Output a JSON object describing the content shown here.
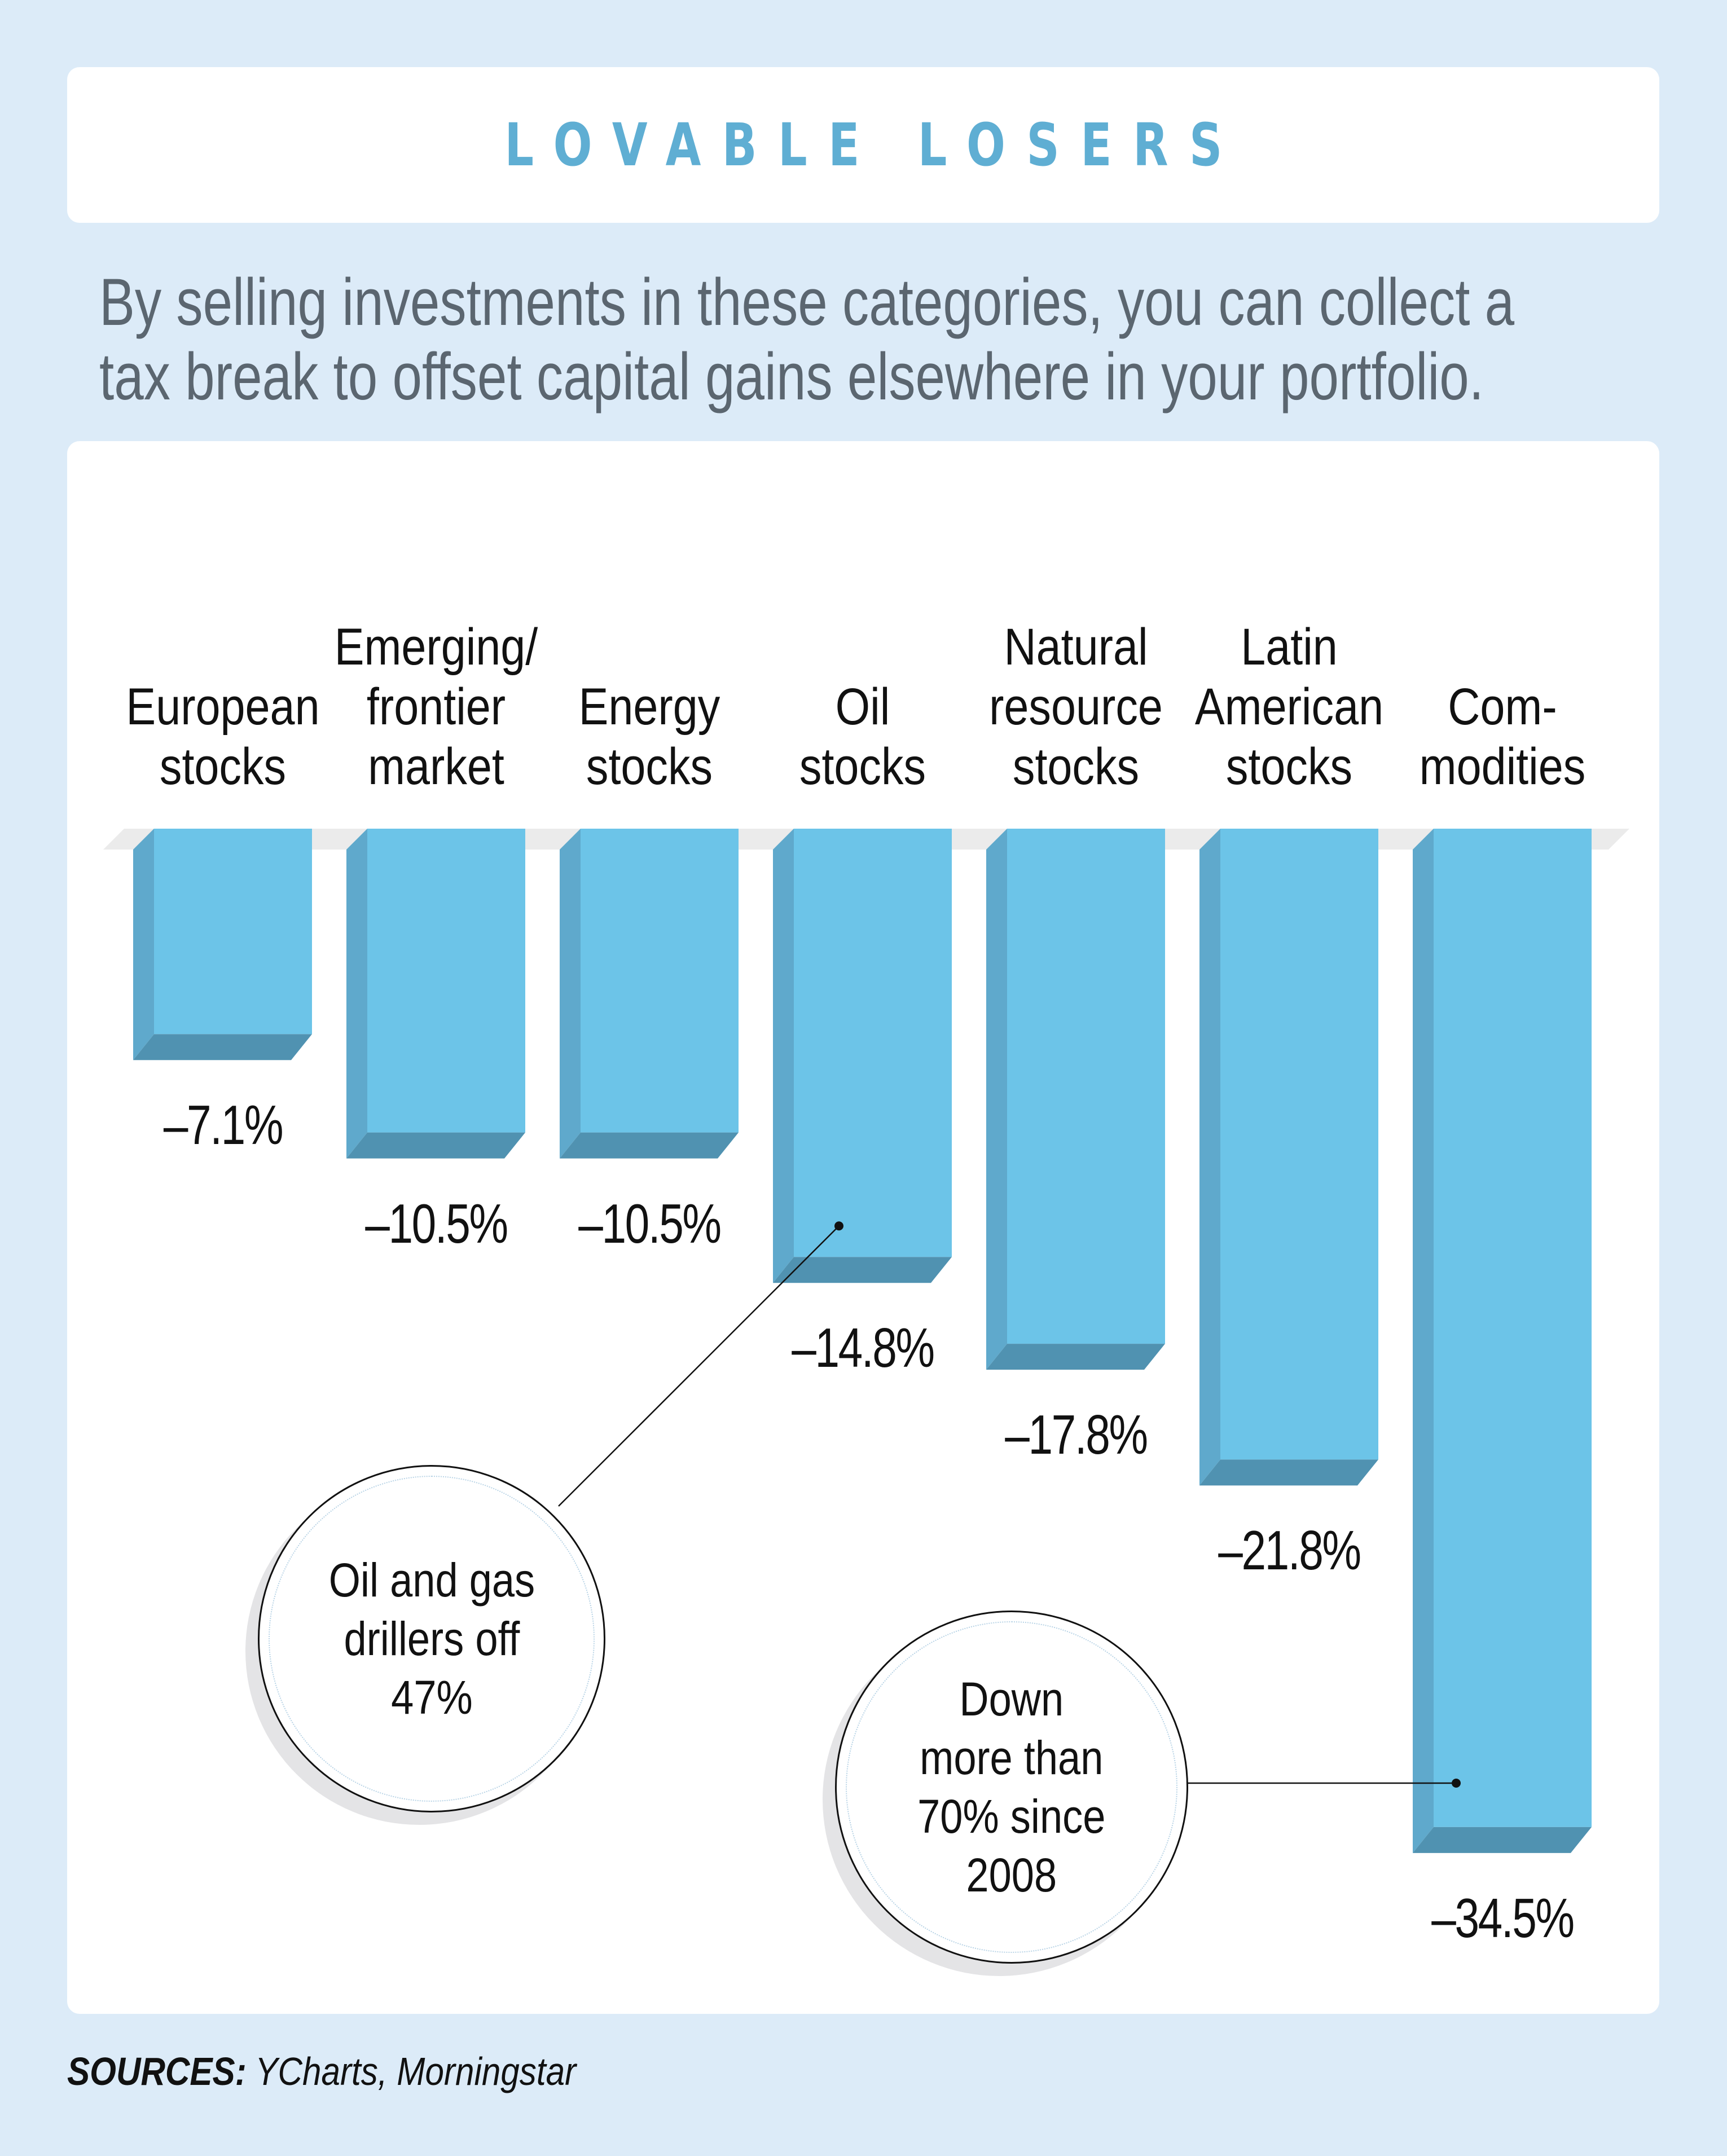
{
  "header": {
    "title": "LOVABLE LOSERS",
    "subtitle_line1": "By selling investments in these categories, you can collect a",
    "subtitle_line2": "tax break to offset capital gains elsewhere in your portfolio."
  },
  "colors": {
    "background": "#DCEBF8",
    "title": "#5FAED3",
    "subtitle": "#5B6670",
    "bar_face": "#6CC4E8",
    "bar_side": "#5FA9CC",
    "bar_bottom": "#5092B1",
    "baseline": "#EBEBEB"
  },
  "chart_data": {
    "type": "bar",
    "title": "LOVABLE LOSERS",
    "subtitle": "By selling investments in these categories, you can collect a tax break to offset capital gains elsewhere in your portfolio.",
    "xlabel": "",
    "ylabel": "",
    "unit": "%",
    "orientation": "vertical-hanging",
    "grid": false,
    "legend": "none",
    "ylim": [
      -35,
      0
    ],
    "categories": [
      "European stocks",
      "Emerging/frontier market",
      "Energy stocks",
      "Oil stocks",
      "Natural resource stocks",
      "Latin American stocks",
      "Commodities"
    ],
    "category_label_lines": [
      [
        "European",
        "stocks"
      ],
      [
        "Emerging/",
        "frontier",
        "market"
      ],
      [
        "Energy",
        "stocks"
      ],
      [
        "Oil",
        "stocks"
      ],
      [
        "Natural",
        "resource",
        "stocks"
      ],
      [
        "Latin",
        "American",
        "stocks"
      ],
      [
        "Com-",
        "modities"
      ]
    ],
    "values": [
      -7.1,
      -10.5,
      -10.5,
      -14.8,
      -17.8,
      -21.8,
      -34.5
    ],
    "value_labels": [
      "–7.1%",
      "–10.5%",
      "–10.5%",
      "–14.8%",
      "–17.8%",
      "–21.8%",
      "–34.5%"
    ],
    "annotations": [
      {
        "text": "Oil and gas\ndrillers off\n47%",
        "target_category": "Oil stocks"
      },
      {
        "text": "Down\nmore than\n70% since\n2008",
        "target_category": "Commodities"
      }
    ]
  },
  "footer": {
    "sources_label": "SOURCES:",
    "sources_text": " YCharts, Morningstar"
  }
}
